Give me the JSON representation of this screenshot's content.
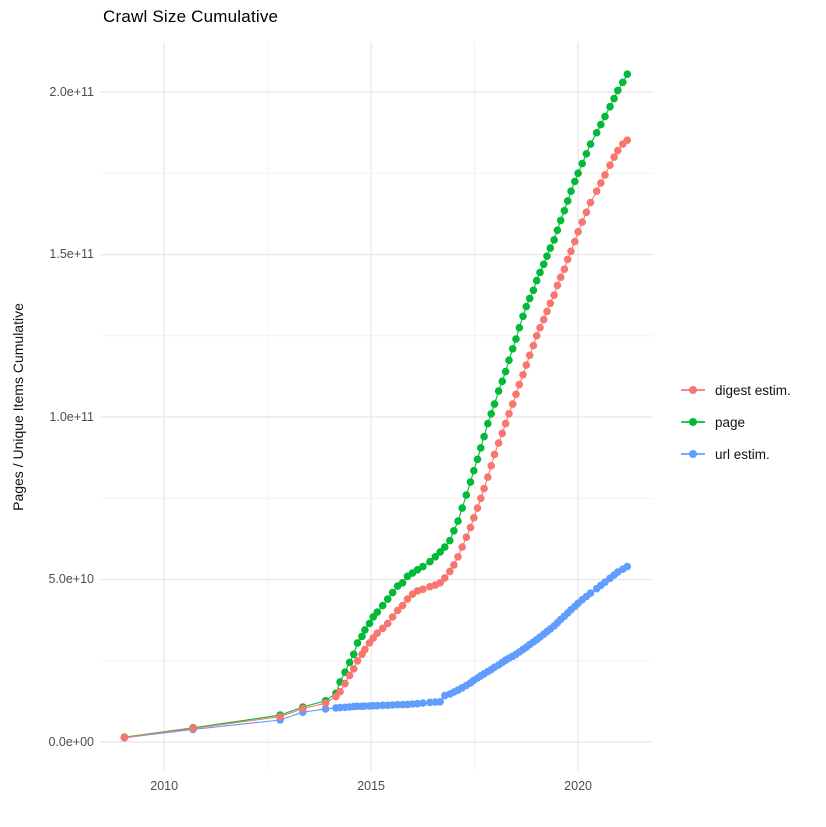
{
  "chart": {
    "title": "Crawl Size Cumulative",
    "ylabel": "Pages / Unique Items Cumulative"
  },
  "colors": {
    "background": "#FFFFFF",
    "grid_major": "#E8E8E8",
    "grid_minor": "#F3F3F3",
    "axis_text": "#4D4D4D",
    "title_text": "#000000",
    "digest": "#F8766D",
    "page": "#00BA38",
    "url": "#619CFF"
  },
  "chart_data": {
    "type": "scatter",
    "title": "Crawl Size Cumulative",
    "xlabel": "",
    "ylabel": "Pages / Unique Items Cumulative",
    "grid": true,
    "legend_position": "right",
    "x_range": [
      2008.45,
      2021.81
    ],
    "y_range": [
      -8900000000.0,
      215400000000.0
    ],
    "x_ticks": {
      "major": [
        2010,
        2015,
        2020
      ],
      "minor": [
        2012.5,
        2017.5
      ],
      "labels": [
        "2010",
        "2015",
        "2020"
      ]
    },
    "y_ticks": {
      "major": [
        0,
        50000000000.0,
        100000000000.0,
        150000000000.0,
        200000000000.0
      ],
      "minor": [
        25000000000.0,
        75000000000.0,
        125000000000.0,
        175000000000.0
      ],
      "labels": [
        "0.0e+00",
        "5.0e+10",
        "1.0e+11",
        "1.5e+11",
        "2.0e+11"
      ]
    },
    "draw_order": [
      2,
      1,
      0
    ],
    "series": [
      {
        "label": "digest estim.",
        "color": "#F8766D",
        "points": [
          [
            2009.04,
            1400000000.0
          ],
          [
            2010.7,
            4200000000.0
          ],
          [
            2012.8,
            7800000000.0
          ],
          [
            2013.35,
            10300000000.0
          ],
          [
            2013.9,
            12000000000.0
          ],
          [
            2014.15,
            14000000000.0
          ],
          [
            2014.25,
            15500000000.0
          ],
          [
            2014.37,
            18000000000.0
          ],
          [
            2014.48,
            20500000000.0
          ],
          [
            2014.58,
            22500000000.0
          ],
          [
            2014.67,
            25000000000.0
          ],
          [
            2014.78,
            27000000000.0
          ],
          [
            2014.85,
            28500000000.0
          ],
          [
            2014.96,
            30500000000.0
          ],
          [
            2015.05,
            32000000000.0
          ],
          [
            2015.15,
            33500000000.0
          ],
          [
            2015.28,
            35000000000.0
          ],
          [
            2015.4,
            36500000000.0
          ],
          [
            2015.52,
            38500000000.0
          ],
          [
            2015.64,
            40500000000.0
          ],
          [
            2015.76,
            42000000000.0
          ],
          [
            2015.88,
            44000000000.0
          ],
          [
            2016.0,
            45500000000.0
          ],
          [
            2016.12,
            46500000000.0
          ],
          [
            2016.25,
            47000000000.0
          ],
          [
            2016.42,
            47800000000.0
          ],
          [
            2016.55,
            48300000000.0
          ],
          [
            2016.67,
            49000000000.0
          ],
          [
            2016.78,
            50500000000.0
          ],
          [
            2016.9,
            52500000000.0
          ],
          [
            2017.0,
            54500000000.0
          ],
          [
            2017.1,
            57000000000.0
          ],
          [
            2017.2,
            60000000000.0
          ],
          [
            2017.3,
            63000000000.0
          ],
          [
            2017.4,
            66000000000.0
          ],
          [
            2017.48,
            69000000000.0
          ],
          [
            2017.57,
            72000000000.0
          ],
          [
            2017.65,
            75000000000.0
          ],
          [
            2017.73,
            78000000000.0
          ],
          [
            2017.82,
            81500000000.0
          ],
          [
            2017.9,
            85000000000.0
          ],
          [
            2017.98,
            88500000000.0
          ],
          [
            2018.08,
            92000000000.0
          ],
          [
            2018.17,
            95000000000.0
          ],
          [
            2018.25,
            98000000000.0
          ],
          [
            2018.33,
            101000000000.0
          ],
          [
            2018.42,
            104000000000.0
          ],
          [
            2018.5,
            107000000000.0
          ],
          [
            2018.58,
            110000000000.0
          ],
          [
            2018.67,
            113000000000.0
          ],
          [
            2018.75,
            116000000000.0
          ],
          [
            2018.83,
            119000000000.0
          ],
          [
            2018.92,
            122000000000.0
          ],
          [
            2019.0,
            125000000000.0
          ],
          [
            2019.08,
            127500000000.0
          ],
          [
            2019.17,
            130000000000.0
          ],
          [
            2019.25,
            132500000000.0
          ],
          [
            2019.33,
            135000000000.0
          ],
          [
            2019.42,
            137500000000.0
          ],
          [
            2019.5,
            140500000000.0
          ],
          [
            2019.58,
            143000000000.0
          ],
          [
            2019.67,
            145500000000.0
          ],
          [
            2019.75,
            148500000000.0
          ],
          [
            2019.83,
            151000000000.0
          ],
          [
            2019.92,
            154000000000.0
          ],
          [
            2020.0,
            157000000000.0
          ],
          [
            2020.1,
            160000000000.0
          ],
          [
            2020.2,
            163000000000.0
          ],
          [
            2020.3,
            166000000000.0
          ],
          [
            2020.45,
            169500000000.0
          ],
          [
            2020.55,
            172000000000.0
          ],
          [
            2020.65,
            174500000000.0
          ],
          [
            2020.77,
            177500000000.0
          ],
          [
            2020.87,
            180000000000.0
          ],
          [
            2020.96,
            182000000000.0
          ],
          [
            2021.08,
            184000000000.0
          ],
          [
            2021.19,
            185200000000.0
          ]
        ]
      },
      {
        "label": "page",
        "color": "#00BA38",
        "points": [
          [
            2009.04,
            1500000000.0
          ],
          [
            2010.7,
            4400000000.0
          ],
          [
            2012.8,
            8300000000.0
          ],
          [
            2013.35,
            10800000000.0
          ],
          [
            2013.9,
            12700000000.0
          ],
          [
            2014.15,
            15000000000.0
          ],
          [
            2014.25,
            18500000000.0
          ],
          [
            2014.37,
            21500000000.0
          ],
          [
            2014.48,
            24500000000.0
          ],
          [
            2014.58,
            27000000000.0
          ],
          [
            2014.67,
            30500000000.0
          ],
          [
            2014.78,
            32500000000.0
          ],
          [
            2014.85,
            34500000000.0
          ],
          [
            2014.96,
            36500000000.0
          ],
          [
            2015.05,
            38500000000.0
          ],
          [
            2015.15,
            40000000000.0
          ],
          [
            2015.28,
            42000000000.0
          ],
          [
            2015.4,
            44000000000.0
          ],
          [
            2015.52,
            46000000000.0
          ],
          [
            2015.64,
            48000000000.0
          ],
          [
            2015.76,
            49000000000.0
          ],
          [
            2015.88,
            51000000000.0
          ],
          [
            2016.0,
            52000000000.0
          ],
          [
            2016.12,
            53000000000.0
          ],
          [
            2016.25,
            54000000000.0
          ],
          [
            2016.42,
            55500000000.0
          ],
          [
            2016.55,
            57000000000.0
          ],
          [
            2016.67,
            58500000000.0
          ],
          [
            2016.78,
            60000000000.0
          ],
          [
            2016.9,
            62000000000.0
          ],
          [
            2017.0,
            65000000000.0
          ],
          [
            2017.1,
            68000000000.0
          ],
          [
            2017.2,
            72000000000.0
          ],
          [
            2017.3,
            76000000000.0
          ],
          [
            2017.4,
            80000000000.0
          ],
          [
            2017.48,
            83500000000.0
          ],
          [
            2017.57,
            87000000000.0
          ],
          [
            2017.65,
            90500000000.0
          ],
          [
            2017.73,
            94000000000.0
          ],
          [
            2017.82,
            98000000000.0
          ],
          [
            2017.9,
            101000000000.0
          ],
          [
            2017.98,
            104000000000.0
          ],
          [
            2018.08,
            108000000000.0
          ],
          [
            2018.17,
            111000000000.0
          ],
          [
            2018.25,
            114000000000.0
          ],
          [
            2018.33,
            117500000000.0
          ],
          [
            2018.42,
            121000000000.0
          ],
          [
            2018.5,
            124000000000.0
          ],
          [
            2018.58,
            127500000000.0
          ],
          [
            2018.67,
            131000000000.0
          ],
          [
            2018.75,
            134000000000.0
          ],
          [
            2018.83,
            136500000000.0
          ],
          [
            2018.92,
            139000000000.0
          ],
          [
            2019.0,
            142000000000.0
          ],
          [
            2019.08,
            144500000000.0
          ],
          [
            2019.17,
            147000000000.0
          ],
          [
            2019.25,
            149500000000.0
          ],
          [
            2019.33,
            152000000000.0
          ],
          [
            2019.42,
            154500000000.0
          ],
          [
            2019.5,
            157500000000.0
          ],
          [
            2019.58,
            160500000000.0
          ],
          [
            2019.67,
            163500000000.0
          ],
          [
            2019.75,
            166500000000.0
          ],
          [
            2019.83,
            169500000000.0
          ],
          [
            2019.92,
            172500000000.0
          ],
          [
            2020.0,
            175000000000.0
          ],
          [
            2020.1,
            178000000000.0
          ],
          [
            2020.2,
            181000000000.0
          ],
          [
            2020.3,
            184000000000.0
          ],
          [
            2020.45,
            187500000000.0
          ],
          [
            2020.55,
            190000000000.0
          ],
          [
            2020.65,
            192500000000.0
          ],
          [
            2020.77,
            195500000000.0
          ],
          [
            2020.87,
            198000000000.0
          ],
          [
            2020.96,
            200500000000.0
          ],
          [
            2021.08,
            203000000000.0
          ],
          [
            2021.19,
            205500000000.0
          ]
        ]
      },
      {
        "label": "url estim.",
        "color": "#619CFF",
        "points": [
          [
            2009.04,
            1300000000.0
          ],
          [
            2010.7,
            3900000000.0
          ],
          [
            2012.8,
            6800000000.0
          ],
          [
            2013.35,
            9200000000.0
          ],
          [
            2013.9,
            10200000000.0
          ],
          [
            2014.15,
            10500000000.0
          ],
          [
            2014.25,
            10600000000.0
          ],
          [
            2014.37,
            10700000000.0
          ],
          [
            2014.48,
            10800000000.0
          ],
          [
            2014.58,
            10900000000.0
          ],
          [
            2014.67,
            11000000000.0
          ],
          [
            2014.78,
            11000000000.0
          ],
          [
            2014.85,
            11100000000.0
          ],
          [
            2014.96,
            11100000000.0
          ],
          [
            2015.05,
            11200000000.0
          ],
          [
            2015.15,
            11200000000.0
          ],
          [
            2015.28,
            11300000000.0
          ],
          [
            2015.4,
            11300000000.0
          ],
          [
            2015.52,
            11400000000.0
          ],
          [
            2015.64,
            11500000000.0
          ],
          [
            2015.76,
            11500000000.0
          ],
          [
            2015.88,
            11600000000.0
          ],
          [
            2016.0,
            11700000000.0
          ],
          [
            2016.12,
            11800000000.0
          ],
          [
            2016.25,
            12000000000.0
          ],
          [
            2016.42,
            12200000000.0
          ],
          [
            2016.55,
            12300000000.0
          ],
          [
            2016.67,
            12400000000.0
          ],
          [
            2016.78,
            14300000000.0
          ],
          [
            2016.9,
            14800000000.0
          ],
          [
            2017.0,
            15400000000.0
          ],
          [
            2017.1,
            16000000000.0
          ],
          [
            2017.2,
            16700000000.0
          ],
          [
            2017.3,
            17400000000.0
          ],
          [
            2017.4,
            18200000000.0
          ],
          [
            2017.48,
            19000000000.0
          ],
          [
            2017.57,
            19700000000.0
          ],
          [
            2017.65,
            20400000000.0
          ],
          [
            2017.73,
            21000000000.0
          ],
          [
            2017.82,
            21700000000.0
          ],
          [
            2017.9,
            22300000000.0
          ],
          [
            2017.98,
            23000000000.0
          ],
          [
            2018.08,
            23700000000.0
          ],
          [
            2018.17,
            24500000000.0
          ],
          [
            2018.25,
            25200000000.0
          ],
          [
            2018.33,
            25800000000.0
          ],
          [
            2018.42,
            26400000000.0
          ],
          [
            2018.5,
            27000000000.0
          ],
          [
            2018.58,
            27700000000.0
          ],
          [
            2018.67,
            28500000000.0
          ],
          [
            2018.75,
            29200000000.0
          ],
          [
            2018.83,
            30000000000.0
          ],
          [
            2018.92,
            30800000000.0
          ],
          [
            2019.0,
            31500000000.0
          ],
          [
            2019.08,
            32300000000.0
          ],
          [
            2019.17,
            33200000000.0
          ],
          [
            2019.25,
            34000000000.0
          ],
          [
            2019.33,
            34800000000.0
          ],
          [
            2019.42,
            35700000000.0
          ],
          [
            2019.5,
            36700000000.0
          ],
          [
            2019.58,
            37700000000.0
          ],
          [
            2019.67,
            38700000000.0
          ],
          [
            2019.75,
            39700000000.0
          ],
          [
            2019.83,
            40700000000.0
          ],
          [
            2019.92,
            41700000000.0
          ],
          [
            2020.0,
            42700000000.0
          ],
          [
            2020.1,
            43800000000.0
          ],
          [
            2020.2,
            44800000000.0
          ],
          [
            2020.3,
            45800000000.0
          ],
          [
            2020.45,
            47200000000.0
          ],
          [
            2020.55,
            48200000000.0
          ],
          [
            2020.65,
            49200000000.0
          ],
          [
            2020.77,
            50400000000.0
          ],
          [
            2020.87,
            51400000000.0
          ],
          [
            2020.96,
            52300000000.0
          ],
          [
            2021.08,
            53200000000.0
          ],
          [
            2021.19,
            54000000000.0
          ]
        ]
      }
    ]
  }
}
